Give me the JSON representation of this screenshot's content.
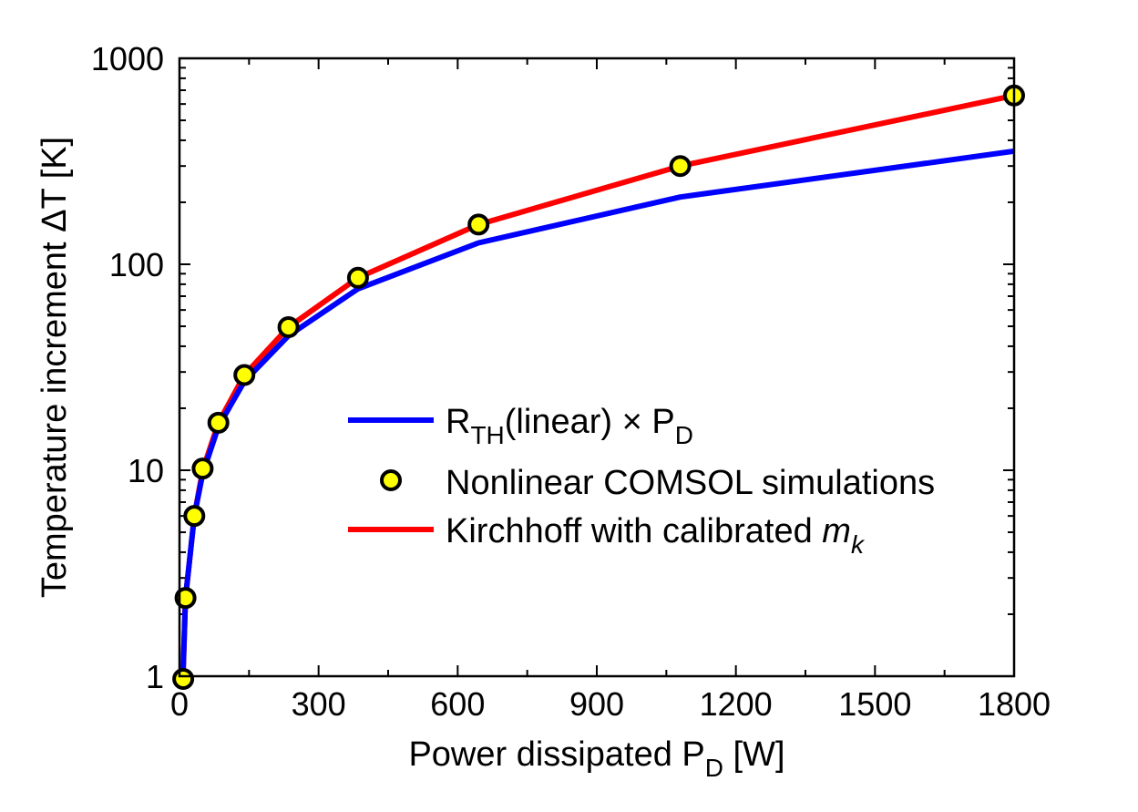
{
  "chart_data": {
    "type": "line",
    "title": "",
    "xlabel": {
      "main": "Power dissipated P",
      "sub": "D",
      "tail": " [W]"
    },
    "ylabel": "Temperature increment ΔT [K]",
    "xlim": [
      0,
      1800
    ],
    "ylim": [
      1,
      1000
    ],
    "yscale": "log",
    "x_ticks": [
      0,
      300,
      600,
      900,
      1200,
      1500,
      1800
    ],
    "x_tick_labels": [
      "0",
      "300",
      "600",
      "900",
      "1200",
      "1500",
      "1800"
    ],
    "y_ticks": [
      1,
      10,
      100,
      1000
    ],
    "y_tick_labels": [
      "1",
      "10",
      "100",
      "1000"
    ],
    "x_minor_step": 150,
    "legend_position": "center-right",
    "colors": {
      "blue": "#0000ff",
      "red": "#ff0000",
      "marker_fill": "#ffff00",
      "marker_edge": "#000000"
    },
    "series": [
      {
        "name": "R_TH(linear) × P_D",
        "kind": "line",
        "color": "#0000ff",
        "legend": {
          "main": "R",
          "sub": "TH",
          "tail": "(linear) × P",
          "sub2": "D"
        },
        "x": [
          0,
          13,
          32,
          50,
          84,
          140,
          235,
          385,
          645,
          1080,
          1800
        ],
        "y": [
          0,
          2.4,
          6,
          9.6,
          16.3,
          27,
          45,
          76,
          127,
          212,
          354
        ]
      },
      {
        "name": "Nonlinear COMSOL simulations",
        "kind": "marker",
        "color": "#ffff00",
        "legend": {
          "main": "Nonlinear COMSOL simulations"
        },
        "x": [
          8,
          13,
          32,
          50,
          84,
          140,
          235,
          385,
          645,
          1080,
          1800
        ],
        "y": [
          0.97,
          2.4,
          6,
          10.2,
          17,
          29,
          49.5,
          86,
          156,
          300,
          660
        ]
      },
      {
        "name": "Kirchhoff with calibrated m_k",
        "kind": "line",
        "color": "#ff0000",
        "legend": {
          "main": "Kirchhoff with calibrated ",
          "italic": "m",
          "italic_sub": "k"
        },
        "x": [
          0,
          13,
          32,
          50,
          84,
          140,
          235,
          385,
          645,
          1080,
          1800
        ],
        "y": [
          0,
          2.4,
          6,
          10,
          17,
          29,
          49.5,
          86,
          156,
          300,
          660
        ]
      }
    ]
  }
}
